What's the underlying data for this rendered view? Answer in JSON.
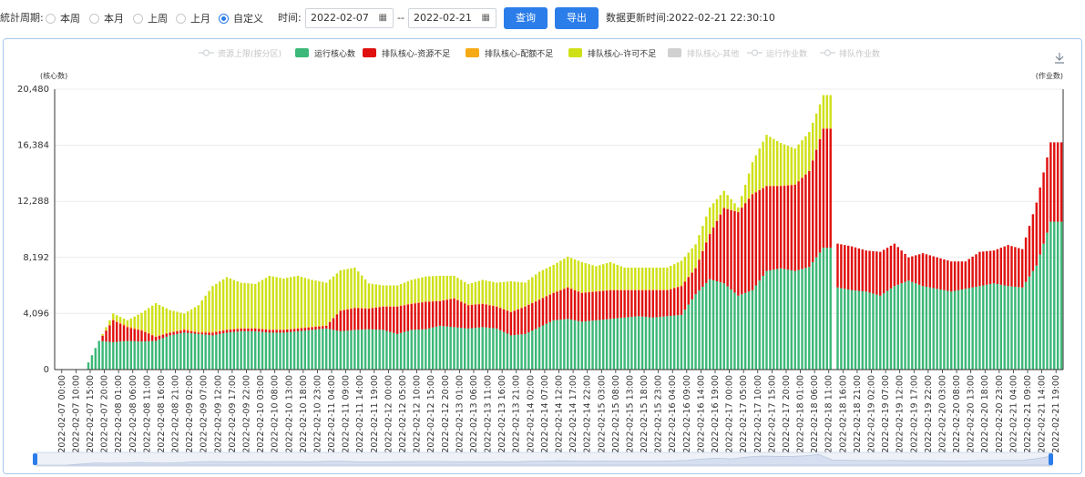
{
  "toolbar": {
    "period_label": "統計周期:",
    "period_options": [
      "本周",
      "本月",
      "上周",
      "上月",
      "自定义"
    ],
    "period_selected": 4,
    "time_label": "时间:",
    "start_date": "2022-02-07",
    "range_sep": "--",
    "end_date": "2022-02-21",
    "query_label": "查询",
    "export_label": "导出",
    "update_label": "数据更新时间:",
    "update_time": "2022-02-21 22:30:10"
  },
  "colors": {
    "run": "#3cb878",
    "res": "#e0100e",
    "quota": "#f6aa14",
    "permit": "#cfe017",
    "other": "#cfd3d0",
    "accent": "#2b7de9"
  },
  "chart_data": {
    "type": "bar",
    "stacked": true,
    "ylabel": "(核心数)",
    "y2label": "(作业数)",
    "ylim": [
      0,
      20480
    ],
    "yticks": [
      0,
      4096,
      8192,
      12288,
      16384,
      20480
    ],
    "ytick_labels": [
      "0",
      "4,096",
      "8,192",
      "12,288",
      "16,384",
      "20,480"
    ],
    "legend_position": "top",
    "legend": [
      {
        "name": "资源上限(按分区)",
        "kind": "line",
        "active": false
      },
      {
        "name": "运行核心数",
        "kind": "bar",
        "color_key": "run",
        "active": true
      },
      {
        "name": "排队核心-资源不足",
        "kind": "bar",
        "color_key": "res",
        "active": true
      },
      {
        "name": "排队核心-配额不足",
        "kind": "bar",
        "color_key": "quota",
        "active": true
      },
      {
        "name": "排队核心-许可不足",
        "kind": "bar",
        "color_key": "permit",
        "active": true
      },
      {
        "name": "排队核心-其他",
        "kind": "bar",
        "color_key": "other",
        "active": false
      },
      {
        "name": "运行作业数",
        "kind": "line",
        "active": false
      },
      {
        "name": "排队作业数",
        "kind": "line",
        "active": false
      }
    ],
    "x_labels": [
      "2022-02-07 00:00",
      "2022-02-07 10:00",
      "2022-02-07 15:00",
      "2022-02-07 20:00",
      "2022-02-08 01:00",
      "2022-02-08 06:00",
      "2022-02-08 11:00",
      "2022-02-08 16:00",
      "2022-02-08 21:00",
      "2022-02-09 02:00",
      "2022-02-09 07:00",
      "2022-02-09 12:00",
      "2022-02-09 17:00",
      "2022-02-09 22:00",
      "2022-02-10 03:00",
      "2022-02-10 08:00",
      "2022-02-10 13:00",
      "2022-02-10 18:00",
      "2022-02-10 23:00",
      "2022-02-11 04:00",
      "2022-02-11 09:00",
      "2022-02-11 14:00",
      "2022-02-11 19:00",
      "2022-02-12 00:00",
      "2022-02-12 05:00",
      "2022-02-12 10:00",
      "2022-02-12 15:00",
      "2022-02-12 20:00",
      "2022-02-13 01:00",
      "2022-02-13 06:00",
      "2022-02-13 11:00",
      "2022-02-13 16:00",
      "2022-02-13 21:00",
      "2022-02-14 02:00",
      "2022-02-14 07:00",
      "2022-02-14 12:00",
      "2022-02-14 17:00",
      "2022-02-14 22:00",
      "2022-02-15 03:00",
      "2022-02-15 08:00",
      "2022-02-15 13:00",
      "2022-02-15 18:00",
      "2022-02-15 23:00",
      "2022-02-16 04:00",
      "2022-02-16 09:00",
      "2022-02-16 14:00",
      "2022-02-16 19:00",
      "2022-02-17 00:00",
      "2022-02-17 05:00",
      "2022-02-17 10:00",
      "2022-02-17 15:00",
      "2022-02-17 20:00",
      "2022-02-18 01:00",
      "2022-02-18 06:00",
      "2022-02-18 11:00",
      "2022-02-18 16:00",
      "2022-02-18 21:00",
      "2022-02-19 02:00",
      "2022-02-19 07:00",
      "2022-02-19 12:00",
      "2022-02-19 17:00",
      "2022-02-19 22:00",
      "2022-02-20 03:00",
      "2022-02-20 08:00",
      "2022-02-20 13:00",
      "2022-02-20 18:00",
      "2022-02-20 23:00",
      "2022-02-21 04:00",
      "2022-02-21 09:00",
      "2022-02-21 14:00",
      "2022-02-21 19:00"
    ],
    "series": [
      {
        "name": "运行核心数",
        "key": "run",
        "values": [
          0,
          0,
          0,
          2100,
          2000,
          2100,
          2050,
          2100,
          2500,
          2700,
          2600,
          2500,
          2700,
          2800,
          2800,
          2700,
          2700,
          2800,
          2900,
          3000,
          2800,
          2900,
          2950,
          2900,
          2600,
          2900,
          2950,
          3200,
          3100,
          3000,
          3100,
          3000,
          2500,
          2600,
          3100,
          3600,
          3700,
          3500,
          3600,
          3700,
          3800,
          3900,
          3800,
          3900,
          4000,
          5500,
          6600,
          6300,
          5400,
          5800,
          7200,
          7400,
          7200,
          7500,
          8900,
          6000,
          5800,
          5700,
          5400,
          6100,
          6500,
          6100,
          5900,
          5700,
          5900,
          6100,
          6300,
          6100,
          6000,
          7600,
          10800
        ]
      },
      {
        "name": "排队核心-资源不足",
        "key": "res",
        "values": [
          0,
          0,
          0,
          0,
          1600,
          1000,
          800,
          300,
          200,
          200,
          100,
          200,
          200,
          200,
          200,
          200,
          200,
          200,
          200,
          200,
          1500,
          1600,
          1500,
          1700,
          2000,
          1900,
          2000,
          1800,
          2100,
          1700,
          1700,
          1600,
          1700,
          2000,
          2000,
          2000,
          2300,
          2100,
          2100,
          2100,
          2000,
          1900,
          2000,
          1900,
          2100,
          1900,
          3300,
          5500,
          6100,
          7000,
          6200,
          6000,
          6300,
          7000,
          8700,
          3200,
          3200,
          3000,
          3200,
          3100,
          1700,
          2400,
          2300,
          2200,
          2000,
          2500,
          2400,
          3000,
          2800,
          4600,
          5800
        ]
      },
      {
        "name": "排队核心-配额不足",
        "key": "quota",
        "values": [
          0,
          0,
          0,
          0,
          100,
          100,
          100,
          50,
          50,
          100,
          100,
          100,
          50,
          50,
          50,
          50,
          50,
          50,
          50,
          50,
          50,
          50,
          50,
          50,
          50,
          50,
          50,
          50,
          50,
          50,
          50,
          50,
          50,
          50,
          50,
          50,
          50,
          50,
          50,
          50,
          50,
          50,
          50,
          50,
          50,
          50,
          50,
          50,
          50,
          50,
          50,
          50,
          50,
          50,
          50,
          0,
          0,
          0,
          0,
          0,
          0,
          0,
          0,
          0,
          0,
          0,
          0,
          0,
          0,
          0,
          0
        ]
      },
      {
        "name": "排队核心-许可不足",
        "key": "permit",
        "values": [
          0,
          0,
          0,
          0,
          400,
          400,
          1200,
          2400,
          1600,
          1100,
          1900,
          3300,
          3800,
          3300,
          3200,
          3900,
          3700,
          3800,
          3400,
          3100,
          2900,
          2900,
          1800,
          1500,
          1500,
          1700,
          1800,
          1800,
          1600,
          1500,
          1700,
          1700,
          2200,
          1700,
          2000,
          2000,
          2200,
          2200,
          1800,
          2000,
          1600,
          1600,
          1600,
          1600,
          1800,
          1700,
          1900,
          1200,
          300,
          2300,
          3700,
          3100,
          2600,
          2800,
          2400,
          0,
          0,
          0,
          0,
          0,
          0,
          0,
          0,
          0,
          0,
          0,
          0,
          0,
          0,
          0,
          0
        ]
      }
    ],
    "gap_after_index": 54
  }
}
